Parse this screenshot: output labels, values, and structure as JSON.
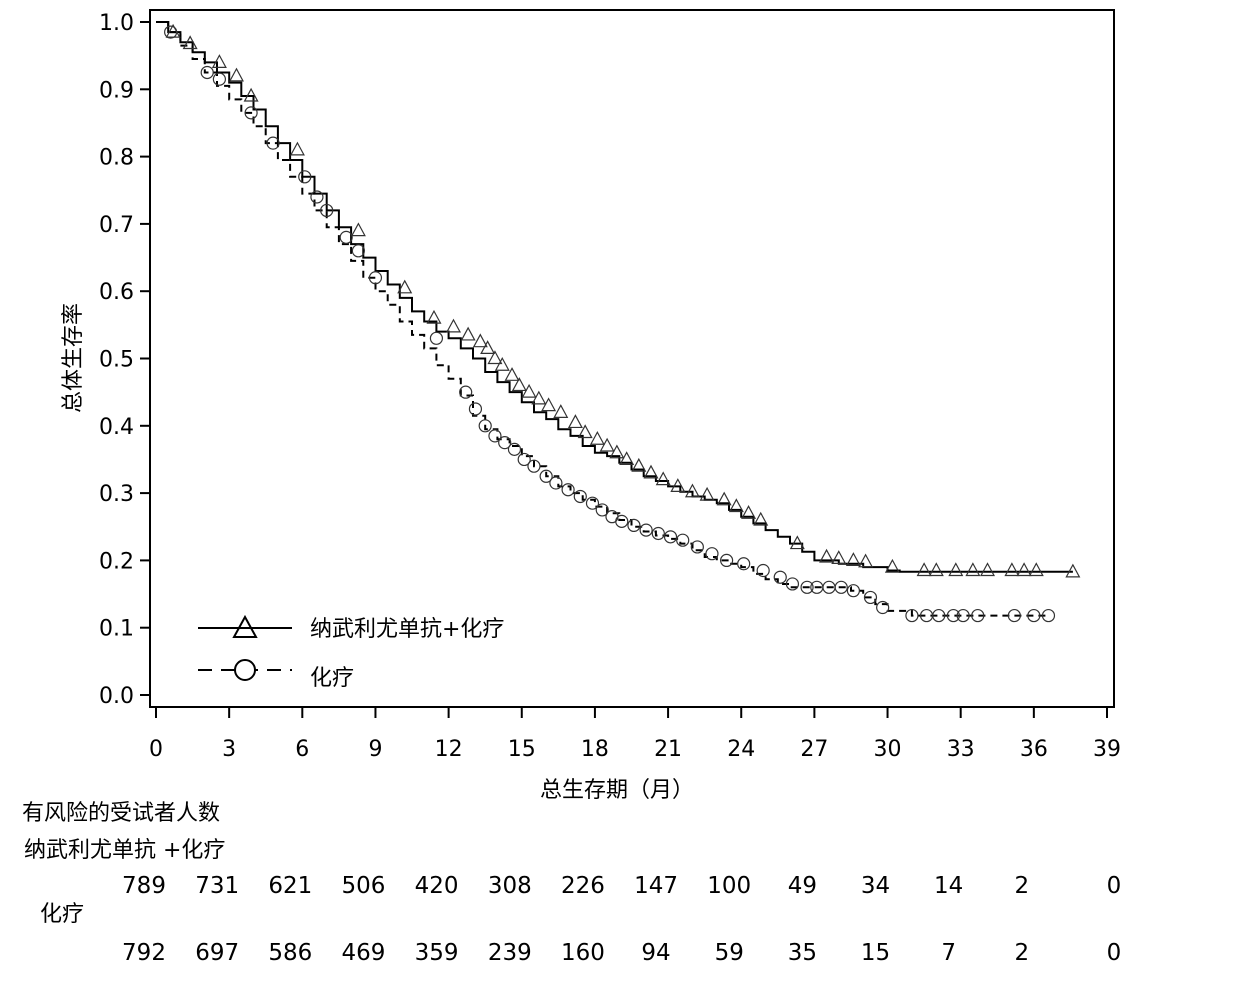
{
  "chart_data": {
    "type": "line",
    "xlabel": "总生存期（月）",
    "ylabel": "总体生存率",
    "xlim": [
      0,
      39
    ],
    "ylim": [
      0,
      1.0
    ],
    "x_ticks": [
      "0",
      "3",
      "6",
      "9",
      "12",
      "15",
      "18",
      "21",
      "24",
      "27",
      "30",
      "33",
      "36",
      "39"
    ],
    "y_ticks": [
      "0.0",
      "0.1",
      "0.2",
      "0.3",
      "0.4",
      "0.5",
      "0.6",
      "0.7",
      "0.8",
      "0.9",
      "1.0"
    ],
    "grid": false,
    "legend_position": "bottom-left",
    "series": [
      {
        "name": "纳武利尤单抗+化疗",
        "line_style": "solid",
        "marker": "triangle",
        "color": "#000000",
        "x": [
          0,
          0.5,
          1,
          1.5,
          2,
          2.5,
          3,
          3.5,
          4,
          4.5,
          5,
          5.5,
          6,
          6.5,
          7,
          7.5,
          8,
          8.5,
          9,
          9.5,
          10,
          10.5,
          11,
          11.5,
          12,
          12.5,
          13,
          13.5,
          14,
          14.5,
          15,
          15.5,
          16,
          16.5,
          17,
          17.5,
          18,
          18.5,
          19,
          19.5,
          20,
          20.5,
          21,
          21.5,
          22,
          22.5,
          23,
          23.5,
          24,
          24.5,
          25,
          25.5,
          26,
          26.5,
          27,
          28,
          29,
          30,
          30.5,
          31,
          32,
          33,
          34,
          35,
          36,
          37.6
        ],
        "y": [
          1.0,
          0.985,
          0.97,
          0.955,
          0.94,
          0.925,
          0.91,
          0.89,
          0.87,
          0.845,
          0.82,
          0.795,
          0.77,
          0.745,
          0.72,
          0.695,
          0.67,
          0.65,
          0.63,
          0.61,
          0.59,
          0.57,
          0.555,
          0.54,
          0.53,
          0.515,
          0.5,
          0.48,
          0.465,
          0.45,
          0.435,
          0.42,
          0.41,
          0.395,
          0.385,
          0.37,
          0.36,
          0.355,
          0.345,
          0.335,
          0.325,
          0.318,
          0.31,
          0.302,
          0.295,
          0.29,
          0.285,
          0.275,
          0.265,
          0.255,
          0.245,
          0.235,
          0.225,
          0.213,
          0.2,
          0.195,
          0.19,
          0.185,
          0.183,
          0.183,
          0.183,
          0.183,
          0.183,
          0.183,
          0.183,
          0.183
        ],
        "censor_x": [
          0.7,
          1.4,
          2.6,
          3.3,
          3.9,
          5.8,
          8.3,
          10.2,
          11.4,
          12.2,
          12.8,
          13.3,
          13.6,
          13.9,
          14.2,
          14.6,
          14.9,
          15.3,
          15.7,
          16.1,
          16.6,
          17.2,
          17.6,
          18.1,
          18.5,
          18.9,
          19.3,
          19.8,
          20.3,
          20.8,
          21.4,
          22.0,
          22.6,
          23.3,
          23.8,
          24.3,
          24.8,
          26.3,
          27.5,
          28.0,
          28.6,
          29.1,
          30.2,
          31.5,
          32.0,
          32.8,
          33.5,
          34.1,
          35.1,
          35.6,
          36.1,
          37.6
        ],
        "censor_y": [
          0.985,
          0.968,
          0.94,
          0.92,
          0.89,
          0.81,
          0.69,
          0.605,
          0.56,
          0.547,
          0.535,
          0.525,
          0.515,
          0.5,
          0.49,
          0.475,
          0.46,
          0.45,
          0.44,
          0.43,
          0.42,
          0.405,
          0.39,
          0.38,
          0.37,
          0.36,
          0.35,
          0.34,
          0.33,
          0.32,
          0.31,
          0.302,
          0.297,
          0.29,
          0.28,
          0.27,
          0.26,
          0.225,
          0.205,
          0.203,
          0.2,
          0.198,
          0.19,
          0.185,
          0.185,
          0.185,
          0.185,
          0.185,
          0.185,
          0.185,
          0.185,
          0.183
        ]
      },
      {
        "name": "化疗",
        "line_style": "dashed",
        "marker": "circle",
        "color": "#000000",
        "x": [
          0,
          0.5,
          1,
          1.5,
          2,
          2.5,
          3,
          3.5,
          4,
          4.5,
          5,
          5.5,
          6,
          6.5,
          7,
          7.5,
          8,
          8.5,
          9,
          9.5,
          10,
          10.5,
          11,
          11.5,
          12,
          12.5,
          13,
          13.5,
          14,
          14.5,
          15,
          15.5,
          16,
          16.5,
          17,
          17.5,
          18,
          18.5,
          19,
          19.5,
          20,
          20.5,
          21,
          21.5,
          22,
          22.5,
          23,
          23.5,
          24,
          24.5,
          25,
          25.5,
          26,
          26.5,
          27,
          27.5,
          28,
          28.5,
          29,
          29.5,
          30,
          31,
          32,
          33,
          34,
          35,
          36,
          36.6
        ],
        "y": [
          1.0,
          0.985,
          0.965,
          0.945,
          0.925,
          0.905,
          0.885,
          0.865,
          0.845,
          0.82,
          0.795,
          0.77,
          0.745,
          0.72,
          0.695,
          0.67,
          0.645,
          0.62,
          0.6,
          0.58,
          0.555,
          0.535,
          0.515,
          0.49,
          0.47,
          0.445,
          0.415,
          0.395,
          0.38,
          0.37,
          0.355,
          0.34,
          0.325,
          0.31,
          0.3,
          0.29,
          0.28,
          0.27,
          0.26,
          0.25,
          0.243,
          0.237,
          0.232,
          0.225,
          0.215,
          0.205,
          0.2,
          0.195,
          0.19,
          0.18,
          0.172,
          0.165,
          0.16,
          0.16,
          0.16,
          0.16,
          0.16,
          0.155,
          0.145,
          0.135,
          0.125,
          0.118,
          0.118,
          0.118,
          0.118,
          0.118,
          0.118,
          0.118
        ],
        "censor_x": [
          0.6,
          2.1,
          2.6,
          3.9,
          4.8,
          6.1,
          6.6,
          7.0,
          7.8,
          8.3,
          9.0,
          11.5,
          12.7,
          13.1,
          13.5,
          13.9,
          14.3,
          14.7,
          15.1,
          15.5,
          16.0,
          16.4,
          16.9,
          17.4,
          17.9,
          18.3,
          18.7,
          19.1,
          19.6,
          20.1,
          20.6,
          21.1,
          21.6,
          22.2,
          22.8,
          23.4,
          24.1,
          24.9,
          25.6,
          26.1,
          26.7,
          27.1,
          27.6,
          28.1,
          28.6,
          29.3,
          29.8,
          31.0,
          31.6,
          32.1,
          32.7,
          33.1,
          33.7,
          35.2,
          36.0,
          36.6
        ],
        "censor_y": [
          0.985,
          0.925,
          0.915,
          0.865,
          0.82,
          0.77,
          0.74,
          0.72,
          0.68,
          0.66,
          0.62,
          0.53,
          0.45,
          0.425,
          0.4,
          0.385,
          0.375,
          0.365,
          0.35,
          0.34,
          0.325,
          0.315,
          0.305,
          0.295,
          0.285,
          0.275,
          0.265,
          0.258,
          0.252,
          0.245,
          0.24,
          0.235,
          0.23,
          0.22,
          0.21,
          0.2,
          0.195,
          0.185,
          0.175,
          0.165,
          0.16,
          0.16,
          0.16,
          0.16,
          0.155,
          0.145,
          0.13,
          0.118,
          0.118,
          0.118,
          0.118,
          0.118,
          0.118,
          0.118,
          0.118,
          0.118
        ]
      }
    ],
    "risk_table": {
      "title": "有风险的受试者人数",
      "rows": [
        {
          "label": "纳武利尤单抗 +化疗",
          "values": [
            "789",
            "731",
            "621",
            "506",
            "420",
            "308",
            "226",
            "147",
            "100",
            "49",
            "34",
            "14",
            "2",
            "0"
          ]
        },
        {
          "label": "化疗",
          "values": [
            "792",
            "697",
            "586",
            "469",
            "359",
            "239",
            "160",
            "94",
            "59",
            "35",
            "15",
            "7",
            "2",
            "0"
          ]
        }
      ]
    }
  }
}
